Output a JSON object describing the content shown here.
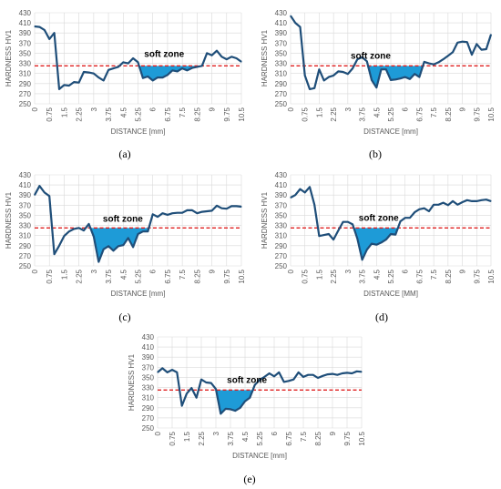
{
  "chart_data": [
    {
      "type": "line",
      "panel_label": "(a)",
      "xlabel": "DISTANCE [mm]",
      "ylabel": "HARDNESS HV1",
      "annotation": "soft zone",
      "threshold": 325,
      "ylim": [
        250,
        430
      ],
      "yticks": [
        250,
        270,
        290,
        310,
        330,
        350,
        370,
        390,
        410,
        430
      ],
      "xticks": [
        "0",
        "0.75",
        "1.5",
        "2.25",
        "3",
        "3.75",
        "4.5",
        "5.25",
        "6",
        "6.75",
        "7.5",
        "8.25",
        "9",
        "9.75",
        "10.5"
      ],
      "grid": true,
      "x": [
        0,
        0.25,
        0.5,
        0.75,
        1,
        1.25,
        1.5,
        1.75,
        2,
        2.25,
        2.5,
        2.75,
        3,
        3.25,
        3.5,
        3.75,
        4,
        4.25,
        4.5,
        4.75,
        5,
        5.25,
        5.5,
        5.75,
        6,
        6.25,
        6.5,
        6.75,
        7,
        7.25,
        7.5,
        7.75,
        8,
        8.25,
        8.5,
        8.75,
        9,
        9.25,
        9.5,
        9.75,
        10,
        10.25,
        10.5
      ],
      "values": [
        403,
        402,
        396,
        378,
        390,
        279,
        287,
        286,
        293,
        292,
        313,
        312,
        310,
        302,
        296,
        317,
        320,
        323,
        332,
        330,
        340,
        332,
        301,
        304,
        296,
        302,
        302,
        307,
        316,
        314,
        320,
        316,
        321,
        323,
        325,
        350,
        346,
        355,
        343,
        338,
        343,
        340,
        333
      ]
    },
    {
      "type": "line",
      "panel_label": "(b)",
      "xlabel": "DISTANCE [mm]",
      "ylabel": "HARDNESS HV1",
      "annotation": "soft zone",
      "threshold": 325,
      "ylim": [
        250,
        430
      ],
      "yticks": [
        250,
        270,
        290,
        310,
        330,
        350,
        370,
        390,
        410,
        430
      ],
      "xticks": [
        "0",
        "0.75",
        "1.5",
        "2.25",
        "3",
        "3.75",
        "4.5",
        "5.25",
        "6",
        "6.75",
        "7.5",
        "8.25",
        "9",
        "9.75",
        "10.5"
      ],
      "grid": true,
      "x": [
        0,
        0.25,
        0.5,
        0.75,
        1,
        1.25,
        1.5,
        1.75,
        2,
        2.25,
        2.5,
        2.75,
        3,
        3.25,
        3.5,
        3.75,
        4,
        4.25,
        4.5,
        4.75,
        5,
        5.25,
        5.5,
        5.75,
        6,
        6.25,
        6.5,
        6.75,
        7,
        7.25,
        7.5,
        7.75,
        8,
        8.25,
        8.5,
        8.75,
        9,
        9.25,
        9.5,
        9.75,
        10,
        10.25,
        10.5
      ],
      "values": [
        424,
        410,
        402,
        306,
        279,
        281,
        318,
        296,
        303,
        306,
        314,
        313,
        309,
        320,
        338,
        342,
        334,
        297,
        282,
        318,
        318,
        297,
        298,
        300,
        303,
        299,
        309,
        303,
        333,
        330,
        328,
        332,
        338,
        345,
        352,
        371,
        373,
        372,
        347,
        368,
        357,
        358,
        387
      ]
    },
    {
      "type": "line",
      "panel_label": "(c)",
      "xlabel": "DISTANCE [mm]",
      "ylabel": "HARDNESS HV1",
      "annotation": "soft zone",
      "threshold": 325,
      "ylim": [
        250,
        430
      ],
      "yticks": [
        250,
        270,
        290,
        310,
        330,
        350,
        370,
        390,
        410,
        430
      ],
      "xticks": [
        "0",
        "0.75",
        "1.5",
        "2.25",
        "3",
        "3.75",
        "4.5",
        "5.25",
        "6",
        "6.75",
        "7.5",
        "8.25",
        "9",
        "9.75",
        "10.5"
      ],
      "grid": true,
      "x": [
        0,
        0.25,
        0.5,
        0.75,
        1,
        1.25,
        1.5,
        1.75,
        2,
        2.25,
        2.5,
        2.75,
        3,
        3.25,
        3.5,
        3.75,
        4,
        4.25,
        4.5,
        4.75,
        5,
        5.25,
        5.5,
        5.75,
        6,
        6.25,
        6.5,
        6.75,
        7,
        7.25,
        7.5,
        7.75,
        8,
        8.25,
        8.5,
        8.75,
        9,
        9.25,
        9.5,
        9.75,
        10,
        10.25,
        10.5
      ],
      "values": [
        390,
        408,
        395,
        388,
        273,
        290,
        309,
        318,
        323,
        325,
        320,
        333,
        308,
        258,
        283,
        289,
        280,
        289,
        291,
        305,
        287,
        313,
        318,
        318,
        352,
        347,
        354,
        351,
        354,
        355,
        355,
        360,
        360,
        354,
        357,
        358,
        359,
        369,
        364,
        363,
        368,
        368,
        367
      ]
    },
    {
      "type": "line",
      "panel_label": "(d)",
      "xlabel": "DISTANCE [MM]",
      "ylabel": "HARDNESS HV1",
      "annotation": "soft zone",
      "threshold": 325,
      "ylim": [
        250,
        430
      ],
      "yticks": [
        250,
        270,
        290,
        310,
        330,
        350,
        370,
        390,
        410,
        430
      ],
      "xticks": [
        "0",
        "0.75",
        "1.5",
        "2.25",
        "3",
        "3.75",
        "4.5",
        "5.25",
        "6",
        "6.75",
        "7.5",
        "8.25",
        "9",
        "9.75",
        "10.5"
      ],
      "grid": true,
      "x": [
        0,
        0.25,
        0.5,
        0.75,
        1,
        1.25,
        1.5,
        1.75,
        2,
        2.25,
        2.5,
        2.75,
        3,
        3.25,
        3.5,
        3.75,
        4,
        4.25,
        4.5,
        4.75,
        5,
        5.25,
        5.5,
        5.75,
        6,
        6.25,
        6.5,
        6.75,
        7,
        7.25,
        7.5,
        7.75,
        8,
        8.25,
        8.5,
        8.75,
        9,
        9.25,
        9.5,
        9.75,
        10,
        10.25,
        10.5
      ],
      "values": [
        385,
        390,
        402,
        395,
        406,
        371,
        309,
        311,
        313,
        302,
        320,
        337,
        337,
        332,
        304,
        262,
        282,
        294,
        292,
        296,
        302,
        313,
        312,
        338,
        345,
        345,
        356,
        362,
        364,
        358,
        371,
        371,
        375,
        370,
        378,
        371,
        376,
        380,
        378,
        378,
        380,
        381,
        378
      ]
    },
    {
      "type": "line",
      "panel_label": "(e)",
      "xlabel": "DISTANCE [mm]",
      "ylabel": "HARDNESS HV1",
      "annotation": "soft zone",
      "threshold": 325,
      "ylim": [
        250,
        430
      ],
      "yticks": [
        250,
        270,
        290,
        310,
        330,
        350,
        370,
        390,
        410,
        430
      ],
      "xticks": [
        "0",
        "0.75",
        "1.5",
        "2.25",
        "3",
        "3.75",
        "4.5",
        "5.25",
        "6",
        "6.75",
        "7.5",
        "8.25",
        "9",
        "9.75",
        "10.5"
      ],
      "grid": true,
      "x": [
        0,
        0.25,
        0.5,
        0.75,
        1,
        1.25,
        1.5,
        1.75,
        2,
        2.25,
        2.5,
        2.75,
        3,
        3.25,
        3.5,
        3.75,
        4,
        4.25,
        4.5,
        4.75,
        5,
        5.25,
        5.5,
        5.75,
        6,
        6.25,
        6.5,
        6.75,
        7,
        7.25,
        7.5,
        7.75,
        8,
        8.25,
        8.5,
        8.75,
        9,
        9.25,
        9.5,
        9.75,
        10,
        10.25,
        10.5
      ],
      "values": [
        360,
        368,
        360,
        365,
        360,
        294,
        318,
        329,
        310,
        346,
        340,
        339,
        327,
        278,
        288,
        287,
        284,
        290,
        303,
        310,
        335,
        345,
        351,
        358,
        352,
        360,
        341,
        343,
        346,
        360,
        351,
        355,
        355,
        349,
        353,
        356,
        357,
        355,
        358,
        359,
        358,
        362,
        361
      ]
    }
  ],
  "colors": {
    "line": "#1f4e79",
    "fill": "#1e9bd7",
    "threshold": "#e02020",
    "grid": "#d9d9d9",
    "tick_text": "#595959"
  }
}
